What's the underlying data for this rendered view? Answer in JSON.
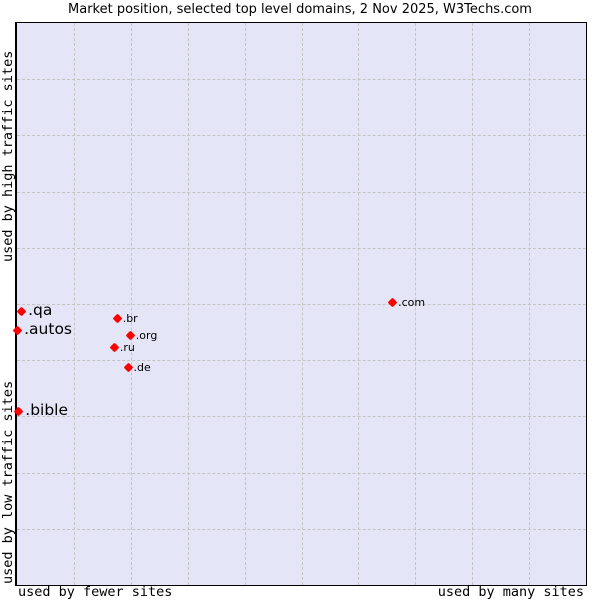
{
  "chart_data": {
    "type": "scatter",
    "title": "Market position, selected top level domains, 2 Nov 2025, W3Techs.com",
    "xlabel_left": "used by fewer sites",
    "xlabel_right": "used by many sites",
    "ylabel_top": "used by high traffic sites",
    "ylabel_bottom": "used by low traffic sites",
    "xlim": [
      0,
      100
    ],
    "ylim": [
      0,
      100
    ],
    "grid": true,
    "grid_divisions": 10,
    "marker_color": "#ff0000",
    "plot_background": "#e4e6f8",
    "points": [
      {
        "label": ".com",
        "x": 66.1,
        "y": 50.2,
        "size": "small"
      },
      {
        "label": ".qa",
        "x": 0.9,
        "y": 48.6,
        "size": "large"
      },
      {
        "label": ".br",
        "x": 17.7,
        "y": 47.3,
        "size": "small"
      },
      {
        "label": ".autos",
        "x": 0.2,
        "y": 45.2,
        "size": "large"
      },
      {
        "label": ".org",
        "x": 20.0,
        "y": 44.3,
        "size": "small"
      },
      {
        "label": ".ru",
        "x": 17.2,
        "y": 42.2,
        "size": "small"
      },
      {
        "label": ".de",
        "x": 19.6,
        "y": 38.6,
        "size": "small"
      },
      {
        "label": ".bible",
        "x": 0.4,
        "y": 30.8,
        "size": "large"
      }
    ]
  }
}
